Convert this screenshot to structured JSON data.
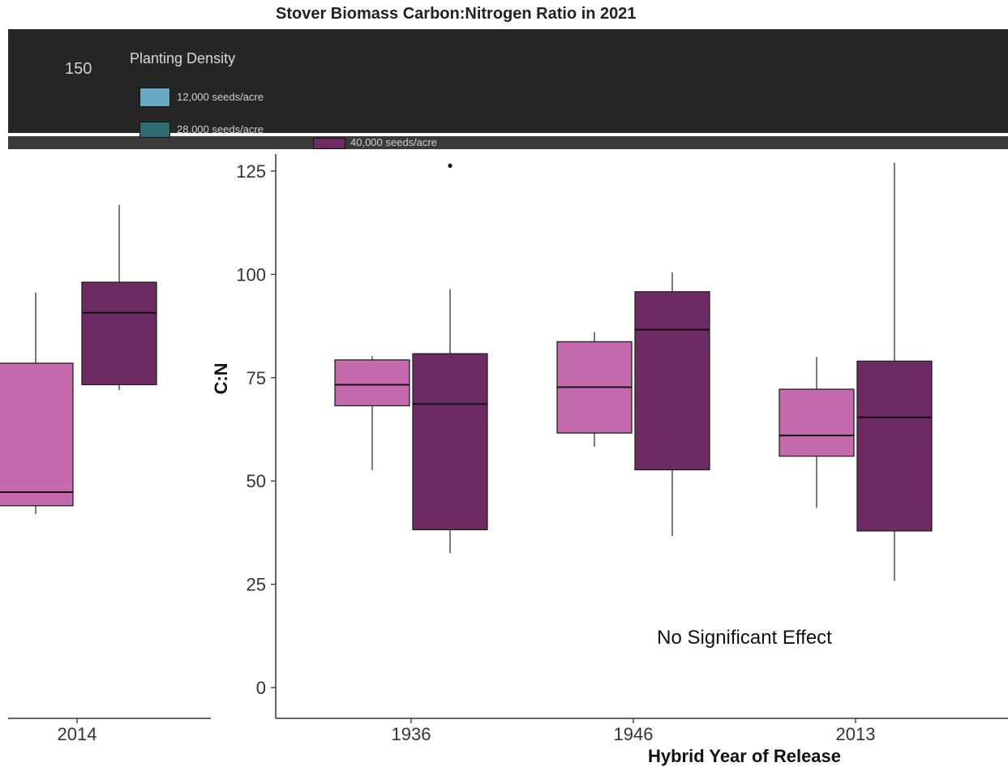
{
  "chart_data": {
    "type": "box",
    "title": "Stover Biomass Carbon:Nitrogen Ratio in 2021",
    "xlabel": "Hybrid Year of Release",
    "ylabel": "C:N",
    "ylim": [
      0,
      125
    ],
    "yticks": [
      0,
      25,
      50,
      75,
      100,
      125
    ],
    "categories": [
      "1936",
      "1946",
      "2013"
    ],
    "left_panel_category": "2014",
    "legend": {
      "title": "Planting Density",
      "entries": [
        {
          "label": "12,000 seeds/acre",
          "color": "#6aa8c4"
        },
        {
          "label": "28,000 seeds/acre",
          "color": "#2f6b73"
        },
        {
          "label": "40,000 seeds/acre",
          "color": "#6e2a62"
        }
      ]
    },
    "partial_tick_label": "150",
    "annotation": "No Significant Effect",
    "colors": {
      "low": "#c56aad",
      "high": "#6e2a62"
    },
    "series": [
      {
        "color": "#c56aad",
        "boxes": [
          {
            "category": "1936",
            "min": 52.6,
            "q1": 68.2,
            "median": 73.3,
            "q3": 79.3,
            "max": 80.2
          },
          {
            "category": "1946",
            "min": 58.3,
            "q1": 61.6,
            "median": 72.7,
            "q3": 83.7,
            "max": 86.0
          },
          {
            "category": "2013",
            "min": 43.5,
            "q1": 56.0,
            "median": 61.0,
            "q3": 72.2,
            "max": 80.0
          }
        ]
      },
      {
        "color": "#6e2a62",
        "boxes": [
          {
            "category": "1936",
            "min": 32.5,
            "q1": 38.2,
            "median": 68.6,
            "q3": 80.8,
            "max": 96.4,
            "outliers": [
              126.3
            ]
          },
          {
            "category": "1946",
            "min": 36.7,
            "q1": 52.7,
            "median": 86.6,
            "q3": 95.8,
            "max": 100.5
          },
          {
            "category": "2013",
            "min": 25.8,
            "q1": 37.9,
            "median": 65.4,
            "q3": 79.0,
            "max": 127.0
          }
        ]
      }
    ],
    "left_panel_boxes": [
      {
        "color": "#c56aad",
        "min": 42.0,
        "q1": 44.0,
        "median": 47.3,
        "q3": 78.5,
        "max": 95.6
      },
      {
        "color": "#6e2a62",
        "min": 72.0,
        "q1": 73.3,
        "median": 90.7,
        "q3": 98.1,
        "max": 116.8
      }
    ]
  }
}
